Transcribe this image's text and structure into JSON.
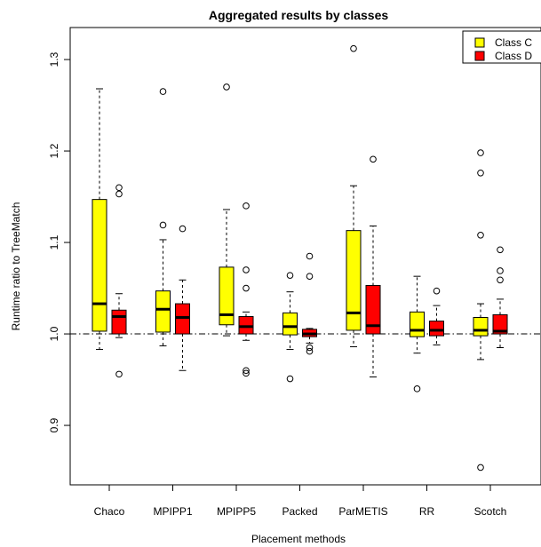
{
  "chart_data": {
    "type": "box",
    "title": "Aggregated results by classes",
    "xlabel": "Placement methods",
    "ylabel": "Runtime ratio to TreeMatch",
    "categories": [
      "Chaco",
      "MPIPP1",
      "MPIPP5",
      "Packed",
      "ParMETIS",
      "RR",
      "Scotch"
    ],
    "yticks": [
      0.9,
      1.0,
      1.1,
      1.2,
      1.3
    ],
    "ytick_labels": [
      "0.9",
      "1.0",
      "1.1",
      "1.2",
      "1.3"
    ],
    "ylim": [
      0.835,
      1.335
    ],
    "reference_line": 1.0,
    "legend_position": "top-right",
    "series": [
      {
        "name": "Class C",
        "color": "#ffff00",
        "boxes": [
          {
            "whisker_low": 0.983,
            "q1": 1.003,
            "median": 1.033,
            "q3": 1.147,
            "whisker_high": 1.268,
            "outliers": []
          },
          {
            "whisker_low": 0.987,
            "q1": 1.002,
            "median": 1.027,
            "q3": 1.047,
            "whisker_high": 1.103,
            "outliers": [
              1.119,
              1.265
            ]
          },
          {
            "whisker_low": 0.998,
            "q1": 1.01,
            "median": 1.021,
            "q3": 1.073,
            "whisker_high": 1.136,
            "outliers": [
              1.27
            ]
          },
          {
            "whisker_low": 0.983,
            "q1": 0.999,
            "median": 1.008,
            "q3": 1.023,
            "whisker_high": 1.046,
            "outliers": [
              1.064,
              0.951
            ]
          },
          {
            "whisker_low": 0.986,
            "q1": 1.004,
            "median": 1.023,
            "q3": 1.113,
            "whisker_high": 1.162,
            "outliers": [
              1.312
            ]
          },
          {
            "whisker_low": 0.979,
            "q1": 0.997,
            "median": 1.004,
            "q3": 1.024,
            "whisker_high": 1.063,
            "outliers": [
              0.94
            ]
          },
          {
            "whisker_low": 0.972,
            "q1": 0.998,
            "median": 1.004,
            "q3": 1.018,
            "whisker_high": 1.033,
            "outliers": [
              1.198,
              1.176,
              1.108,
              0.854
            ]
          }
        ]
      },
      {
        "name": "Class D",
        "color": "#ff0000",
        "boxes": [
          {
            "whisker_low": 0.996,
            "q1": 1.0,
            "median": 1.019,
            "q3": 1.026,
            "whisker_high": 1.044,
            "outliers": [
              1.16,
              1.153,
              0.956
            ]
          },
          {
            "whisker_low": 0.96,
            "q1": 1.0,
            "median": 1.018,
            "q3": 1.033,
            "whisker_high": 1.059,
            "outliers": [
              1.115
            ]
          },
          {
            "whisker_low": 0.993,
            "q1": 1.0,
            "median": 1.008,
            "q3": 1.019,
            "whisker_high": 1.024,
            "outliers": [
              1.14,
              1.07,
              1.05,
              0.96,
              0.957
            ]
          },
          {
            "whisker_low": 0.99,
            "q1": 0.997,
            "median": 1.0,
            "q3": 1.005,
            "whisker_high": 1.006,
            "outliers": [
              1.085,
              1.063,
              0.985,
              0.981
            ]
          },
          {
            "whisker_low": 0.953,
            "q1": 1.0,
            "median": 1.009,
            "q3": 1.053,
            "whisker_high": 1.118,
            "outliers": [
              1.191
            ]
          },
          {
            "whisker_low": 0.988,
            "q1": 0.998,
            "median": 1.004,
            "q3": 1.014,
            "whisker_high": 1.031,
            "outliers": [
              1.047
            ]
          },
          {
            "whisker_low": 0.985,
            "q1": 1.0,
            "median": 1.003,
            "q3": 1.021,
            "whisker_high": 1.038,
            "outliers": [
              1.092,
              1.069,
              1.059
            ]
          }
        ]
      }
    ]
  }
}
